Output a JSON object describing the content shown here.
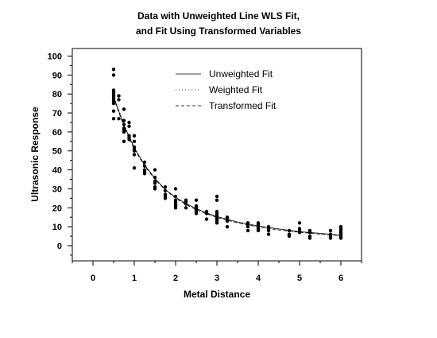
{
  "chart_data": {
    "type": "scatter",
    "title": [
      "Data with Unweighted Line WLS Fit,",
      "and Fit Using Transformed Variables"
    ],
    "xlabel": "Metal Distance",
    "ylabel": "Ultrasonic Response",
    "xlim": [
      -0.5,
      6.5
    ],
    "ylim": [
      -8,
      104
    ],
    "x_ticks": [
      0,
      1,
      2,
      3,
      4,
      5,
      6
    ],
    "y_ticks": [
      0,
      10,
      20,
      30,
      40,
      50,
      60,
      70,
      80,
      90,
      100
    ],
    "legend": {
      "position": "top-right",
      "entries": [
        "Unweighted Fit",
        "Weighted Fit",
        "Transformed Fit"
      ]
    },
    "grid": false,
    "points": [
      [
        0.5,
        93
      ],
      [
        0.5,
        90
      ],
      [
        0.5,
        82
      ],
      [
        0.5,
        81
      ],
      [
        0.5,
        80
      ],
      [
        0.5,
        79
      ],
      [
        0.5,
        78
      ],
      [
        0.5,
        77
      ],
      [
        0.5,
        76
      ],
      [
        0.5,
        75
      ],
      [
        0.5,
        71
      ],
      [
        0.5,
        67
      ],
      [
        0.625,
        79
      ],
      [
        0.625,
        77
      ],
      [
        0.625,
        67
      ],
      [
        0.75,
        72
      ],
      [
        0.75,
        66
      ],
      [
        0.75,
        64
      ],
      [
        0.75,
        62
      ],
      [
        0.75,
        61
      ],
      [
        0.75,
        60
      ],
      [
        0.75,
        55
      ],
      [
        0.875,
        65
      ],
      [
        0.875,
        63
      ],
      [
        0.875,
        58
      ],
      [
        0.875,
        57
      ],
      [
        0.875,
        56
      ],
      [
        1.0,
        58
      ],
      [
        1.0,
        55
      ],
      [
        1.0,
        52
      ],
      [
        1.0,
        51
      ],
      [
        1.0,
        50
      ],
      [
        1.0,
        48
      ],
      [
        1.0,
        41
      ],
      [
        1.25,
        44
      ],
      [
        1.25,
        42
      ],
      [
        1.25,
        40
      ],
      [
        1.25,
        39
      ],
      [
        1.25,
        38
      ],
      [
        1.5,
        40
      ],
      [
        1.5,
        36
      ],
      [
        1.5,
        34
      ],
      [
        1.5,
        33
      ],
      [
        1.5,
        31
      ],
      [
        1.5,
        30
      ],
      [
        1.75,
        31
      ],
      [
        1.75,
        29
      ],
      [
        1.75,
        27
      ],
      [
        1.75,
        26
      ],
      [
        1.75,
        25
      ],
      [
        2.0,
        30
      ],
      [
        2.0,
        26
      ],
      [
        2.0,
        24
      ],
      [
        2.0,
        23
      ],
      [
        2.0,
        22
      ],
      [
        2.0,
        21
      ],
      [
        2.0,
        20
      ],
      [
        2.25,
        24
      ],
      [
        2.25,
        23
      ],
      [
        2.25,
        22
      ],
      [
        2.25,
        20
      ],
      [
        2.5,
        24
      ],
      [
        2.5,
        21
      ],
      [
        2.5,
        20
      ],
      [
        2.5,
        19
      ],
      [
        2.5,
        18
      ],
      [
        2.5,
        17
      ],
      [
        2.75,
        18
      ],
      [
        2.75,
        17
      ],
      [
        2.75,
        14
      ],
      [
        3.0,
        26
      ],
      [
        3.0,
        24
      ],
      [
        3.0,
        18
      ],
      [
        3.0,
        17
      ],
      [
        3.0,
        16
      ],
      [
        3.0,
        15
      ],
      [
        3.0,
        14
      ],
      [
        3.0,
        13
      ],
      [
        3.0,
        12
      ],
      [
        3.25,
        15
      ],
      [
        3.25,
        14
      ],
      [
        3.25,
        13
      ],
      [
        3.25,
        10
      ],
      [
        3.75,
        12
      ],
      [
        3.75,
        11
      ],
      [
        3.75,
        10
      ],
      [
        3.75,
        8
      ],
      [
        4.0,
        12
      ],
      [
        4.0,
        11
      ],
      [
        4.0,
        10
      ],
      [
        4.0,
        9
      ],
      [
        4.0,
        8
      ],
      [
        4.25,
        10
      ],
      [
        4.25,
        9
      ],
      [
        4.25,
        8
      ],
      [
        4.25,
        6
      ],
      [
        4.75,
        8
      ],
      [
        4.75,
        6
      ],
      [
        4.75,
        5
      ],
      [
        5.0,
        12
      ],
      [
        5.0,
        9
      ],
      [
        5.0,
        8
      ],
      [
        5.0,
        7
      ],
      [
        5.25,
        8
      ],
      [
        5.25,
        7
      ],
      [
        5.25,
        5
      ],
      [
        5.25,
        4
      ],
      [
        5.75,
        8
      ],
      [
        5.75,
        6
      ],
      [
        5.75,
        5
      ],
      [
        5.75,
        4
      ],
      [
        6.0,
        10
      ],
      [
        6.0,
        9
      ],
      [
        6.0,
        8
      ],
      [
        6.0,
        7
      ],
      [
        6.0,
        6
      ],
      [
        6.0,
        5
      ],
      [
        6.0,
        4
      ]
    ],
    "fits": [
      {
        "name": "Unweighted Fit",
        "dash": "",
        "curve": [
          [
            0.5,
            78.5
          ],
          [
            0.75,
            63.5
          ],
          [
            1.0,
            51.5
          ],
          [
            1.25,
            42.5
          ],
          [
            1.5,
            35.5
          ],
          [
            1.75,
            29.6
          ],
          [
            2.0,
            25.5
          ],
          [
            2.25,
            22.2
          ],
          [
            2.5,
            19.6
          ],
          [
            2.75,
            17.3
          ],
          [
            3.0,
            15.4
          ],
          [
            3.5,
            12.5
          ],
          [
            4.0,
            10.4
          ],
          [
            4.5,
            8.8
          ],
          [
            5.0,
            7.4
          ],
          [
            5.5,
            6.5
          ],
          [
            6.0,
            5.6
          ]
        ]
      },
      {
        "name": "Weighted Fit",
        "dash": "1,3",
        "curve": [
          [
            0.5,
            79.5
          ],
          [
            0.75,
            64.0
          ],
          [
            1.0,
            52.0
          ],
          [
            1.25,
            42.8
          ],
          [
            1.5,
            35.6
          ],
          [
            1.75,
            29.8
          ],
          [
            2.0,
            25.5
          ],
          [
            2.25,
            22.0
          ],
          [
            2.5,
            19.3
          ],
          [
            2.75,
            17.0
          ],
          [
            3.0,
            15.0
          ],
          [
            3.5,
            12.0
          ],
          [
            4.0,
            10.0
          ],
          [
            4.5,
            8.3
          ],
          [
            5.0,
            7.0
          ],
          [
            5.5,
            6.0
          ],
          [
            6.0,
            5.2
          ]
        ]
      },
      {
        "name": "Transformed Fit",
        "dash": "4,3",
        "curve": [
          [
            0.5,
            78.0
          ],
          [
            0.75,
            62.8
          ],
          [
            1.0,
            51.0
          ],
          [
            1.25,
            42.0
          ],
          [
            1.5,
            35.0
          ],
          [
            1.75,
            29.4
          ],
          [
            2.0,
            25.0
          ],
          [
            2.25,
            21.7
          ],
          [
            2.5,
            19.0
          ],
          [
            2.75,
            16.8
          ],
          [
            3.0,
            14.9
          ],
          [
            3.5,
            12.0
          ],
          [
            4.0,
            9.9
          ],
          [
            4.5,
            8.3
          ],
          [
            5.0,
            7.1
          ],
          [
            5.5,
            6.1
          ],
          [
            6.0,
            5.3
          ]
        ]
      }
    ]
  }
}
